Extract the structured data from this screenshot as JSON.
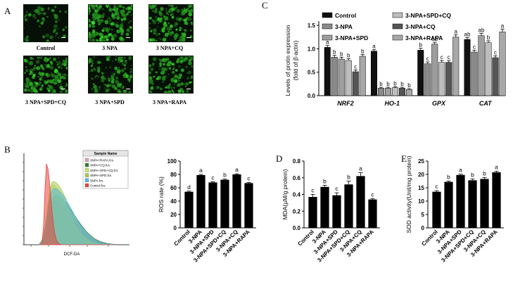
{
  "panel_labels": {
    "A": "A",
    "B": "B",
    "C": "C",
    "D": "D",
    "E": "E"
  },
  "micrographs": [
    {
      "label": "Control",
      "green": 0.1
    },
    {
      "label": "3 NPA",
      "green": 0.85
    },
    {
      "label": "3 NPA+CQ",
      "green": 0.75
    },
    {
      "label": "3 NPA+SPD+CQ",
      "green": 0.8
    },
    {
      "label": "3 NPA+SPD",
      "green": 0.45
    },
    {
      "label": "3 NPA+RAPA",
      "green": 0.55
    }
  ],
  "colors": {
    "black": "#000000",
    "bar_fill": "#000000",
    "green": "#2fb52f"
  },
  "chart_data": [
    {
      "type": "bar",
      "panel": "C",
      "ylabel_line1": "Levels of protin expression",
      "ylabel_line2": "(fold of β-actin)",
      "categories": [
        "NRF2",
        "HO-1",
        "GPX",
        "CAT"
      ],
      "ylim": [
        0,
        1.5
      ],
      "yticks": [
        "0.0",
        "0.5",
        "1.0",
        "1.5"
      ],
      "legend": [
        "Control",
        "3-NPA",
        "3-NPA+SPD",
        "3-NPA+SPD+CQ",
        "3-NPA+CQ",
        "3-NPA+RAPA"
      ],
      "series": [
        {
          "name": "Control",
          "fill": "#111111",
          "values": [
            1.03,
            0.95,
            0.97,
            1.2
          ],
          "errors": [
            0.04,
            0.03,
            0.04,
            0.04
          ],
          "letters": [
            "a",
            "a",
            "b",
            "ab"
          ]
        },
        {
          "name": "3-NPA",
          "fill": "#8a8a8a",
          "values": [
            0.82,
            0.16,
            0.68,
            0.93
          ],
          "errors": [
            0.04,
            0.02,
            0.04,
            0.04
          ],
          "letters": [
            "b",
            "b",
            "c",
            "c"
          ]
        },
        {
          "name": "3-NPA+SPD",
          "fill": "#9e9e9e",
          "values": [
            0.78,
            0.16,
            1.1,
            1.28
          ],
          "errors": [
            0.04,
            0.02,
            0.04,
            0.05
          ],
          "letters": [
            "b",
            "b",
            "ab",
            "ab"
          ]
        },
        {
          "name": "3-NPA+SPD+CQ",
          "fill": "#bdbdbd",
          "values": [
            0.75,
            0.17,
            0.71,
            1.13
          ],
          "errors": [
            0.04,
            0.02,
            0.04,
            0.04
          ],
          "letters": [
            "b",
            "b",
            "c",
            "b"
          ]
        },
        {
          "name": "3-NPA+CQ",
          "fill": "#555555",
          "values": [
            0.51,
            0.16,
            0.71,
            0.81
          ],
          "errors": [
            0.04,
            0.02,
            0.04,
            0.04
          ],
          "letters": [
            "c",
            "b",
            "c",
            "c"
          ]
        },
        {
          "name": "3-NPA+RAPA",
          "fill": "#a8a8a8",
          "values": [
            0.84,
            0.13,
            1.25,
            1.36
          ],
          "errors": [
            0.04,
            0.02,
            0.05,
            0.06
          ],
          "letters": [
            "b",
            "b",
            "a",
            "a"
          ]
        }
      ]
    },
    {
      "type": "area",
      "panel": "B-histogram",
      "xlabel": "DCF-DA",
      "legend_title": "Sample Name",
      "legend": [
        "3NPA+RAPA.fcs",
        "3NPA+CQ.fcs",
        "3NPA+SPD+CQ.fcs",
        "3NPA+SPD.fcs",
        "3NPA.fcs",
        "Control.fcs"
      ],
      "legend_colors": [
        "#d9a6b8",
        "#2e7d32",
        "#c6e46a",
        "#a9c94d",
        "#5bb8e8",
        "#e6433d"
      ]
    },
    {
      "type": "bar",
      "panel": "B",
      "ylabel": "ROS rate (%)",
      "categories": [
        "Control",
        "3-NPA",
        "3-NPA+SPD",
        "3-NPA+SPD+CQ",
        "3-NPA+CQ",
        "3-NPA+RAPA"
      ],
      "values": [
        54,
        79,
        68,
        72,
        80,
        67
      ],
      "errors": [
        1,
        1,
        1,
        1,
        1,
        1
      ],
      "letters": [
        "d",
        "a",
        "c",
        "b",
        "a",
        "c"
      ],
      "ylim": [
        0,
        100
      ],
      "yticks": [
        "0",
        "20",
        "40",
        "60",
        "80",
        "100"
      ]
    },
    {
      "type": "bar",
      "panel": "D",
      "ylabel": "MDA(μM/g protein)",
      "categories": [
        "Control",
        "3-NPA",
        "3-NPA+SPD",
        "3-NPA+SPD+CQ",
        "3-NPA+CQ",
        "3-NPA+RAPA"
      ],
      "values": [
        0.37,
        0.49,
        0.39,
        0.52,
        0.62,
        0.34
      ],
      "errors": [
        0.03,
        0.02,
        0.03,
        0.04,
        0.04,
        0.01
      ],
      "letters": [
        "c",
        "b",
        "c",
        "b",
        "a",
        "c"
      ],
      "ylim": [
        0,
        0.8
      ],
      "yticks": [
        "0.0",
        "0.2",
        "0.4",
        "0.6",
        "0.8"
      ]
    },
    {
      "type": "bar",
      "panel": "E",
      "ylabel": "SOD activity(Unit/mg protein)",
      "categories": [
        "Control",
        "3-NPA",
        "3-NPA+SPD",
        "3-NPA+SPD+CQ",
        "3-NPA+CQ",
        "3-NPA+RAPA"
      ],
      "values": [
        13.5,
        17.2,
        19.8,
        17.8,
        18.3,
        20.8
      ],
      "errors": [
        0.4,
        0.3,
        0.3,
        0.5,
        0.5,
        0.4
      ],
      "letters": [
        "c",
        "b",
        "a",
        "b",
        "b",
        "a"
      ],
      "ylim": [
        0,
        25
      ],
      "yticks": [
        "0",
        "5",
        "10",
        "15",
        "20",
        "25"
      ]
    }
  ]
}
